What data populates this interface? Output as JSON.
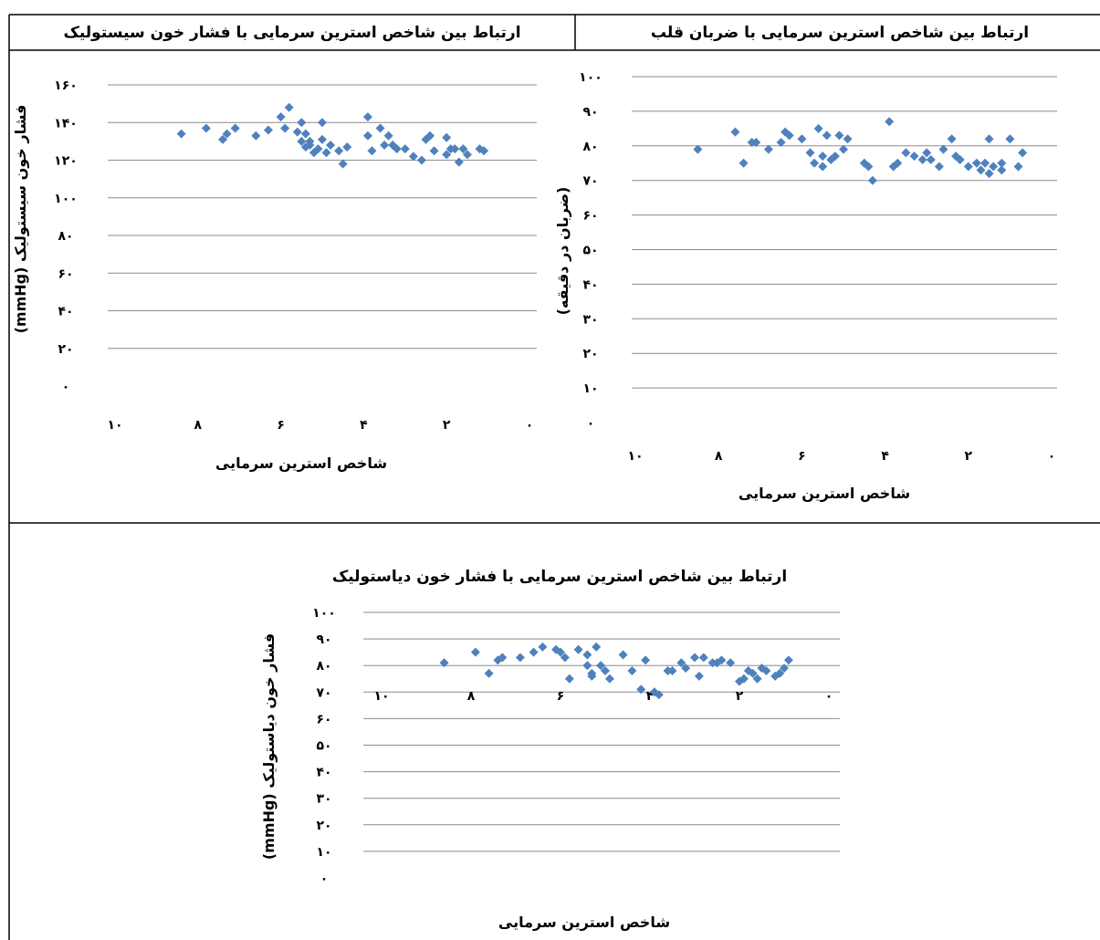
{
  "chart_data": [
    {
      "type": "scatter",
      "title": "ارتباط بین شاخص استرین سرمایی با فشار خون سیستولیک",
      "xlabel": "شاخص استرین سرمایی",
      "ylabel": "فشار خون سیستولیک (mmHg)",
      "xlim": [
        0,
        10
      ],
      "ylim": [
        0,
        160
      ],
      "x_reversed": true,
      "x_ticks": [
        "۱۰",
        "۸",
        "۶",
        "۴",
        "۲",
        "۰"
      ],
      "y_ticks": [
        "۰",
        "۲۰",
        "۴۰",
        "۶۰",
        "۸۰",
        "۱۰۰",
        "۱۲۰",
        "۱۴۰",
        "۱۶۰"
      ],
      "grid": true,
      "series": [
        {
          "x": [
            8.4,
            7.8,
            7.4,
            7.3,
            7.1,
            6.6,
            6.3,
            6.0,
            5.9,
            5.8,
            5.6,
            5.5,
            5.5,
            5.4,
            5.4,
            5.3,
            5.3,
            5.2,
            5.1,
            5.0,
            5.0,
            4.9,
            4.8,
            4.6,
            4.5,
            4.4,
            3.9,
            3.9,
            3.8,
            3.6,
            3.5,
            3.4,
            3.3,
            3.2,
            3.0,
            2.8,
            2.6,
            2.5,
            2.4,
            2.3,
            2.0,
            2.0,
            1.9,
            1.8,
            1.7,
            1.6,
            1.5,
            1.2,
            1.1
          ],
          "y": [
            134,
            137,
            131,
            134,
            137,
            133,
            136,
            143,
            137,
            148,
            135,
            130,
            140,
            127,
            134,
            130,
            128,
            124,
            126,
            140,
            131,
            124,
            128,
            125,
            118,
            127,
            143,
            133,
            125,
            137,
            128,
            133,
            128,
            126,
            126,
            122,
            120,
            131,
            133,
            125,
            132,
            123,
            126,
            126,
            119,
            126,
            123,
            126,
            125
          ]
        }
      ],
      "color": "#4f81bd"
    },
    {
      "type": "scatter",
      "title": "ارتباط بین شاخص استرین سرمایی با ضربان قلب",
      "xlabel": "شاخص استرین سرمایی",
      "ylabel": "(ضربان در دقیقه)",
      "xlim": [
        0,
        10
      ],
      "ylim": [
        0,
        100
      ],
      "x_reversed": true,
      "x_ticks": [
        "۱۰",
        "۸",
        "۶",
        "۴",
        "۲",
        "۰"
      ],
      "y_ticks": [
        "۰",
        "۱۰",
        "۲۰",
        "۳۰",
        "۴۰",
        "۵۰",
        "۶۰",
        "۷۰",
        "۸۰",
        "۹۰",
        "۱۰۰"
      ],
      "grid": true,
      "series": [
        {
          "x": [
            8.5,
            7.6,
            7.4,
            7.2,
            7.1,
            6.8,
            6.5,
            6.4,
            6.3,
            6.0,
            5.8,
            5.7,
            5.6,
            5.5,
            5.5,
            5.4,
            5.3,
            5.2,
            5.1,
            5.0,
            4.9,
            4.5,
            4.4,
            4.3,
            3.9,
            3.8,
            3.7,
            3.5,
            3.3,
            3.1,
            3.0,
            2.9,
            2.7,
            2.6,
            2.4,
            2.3,
            2.2,
            2.0,
            1.8,
            1.7,
            1.6,
            1.5,
            1.5,
            1.4,
            1.2,
            1.2,
            1.0,
            0.8,
            0.7
          ],
          "y": [
            79,
            84,
            75,
            81,
            81,
            79,
            81,
            84,
            83,
            82,
            78,
            75,
            85,
            77,
            74,
            83,
            76,
            77,
            83,
            79,
            82,
            75,
            74,
            70,
            87,
            74,
            75,
            78,
            77,
            76,
            78,
            76,
            74,
            79,
            82,
            77,
            76,
            74,
            75,
            73,
            75,
            72,
            82,
            74,
            73,
            75,
            82,
            74,
            78
          ]
        }
      ],
      "color": "#4f81bd"
    },
    {
      "type": "scatter",
      "title": "ارتباط بین شاخص استرین سرمایی با فشار خون دیاستولیک",
      "xlabel": "شاخص استرین سرمایی",
      "ylabel": "فشار خون دیاستولیک (mmHg)",
      "xlim": [
        0,
        10
      ],
      "ylim": [
        0,
        100
      ],
      "x_reversed": true,
      "x_ticks": [
        "۱۰",
        "۸",
        "۶",
        "۴",
        "۲",
        "۰"
      ],
      "y_ticks": [
        "۰",
        "۱۰",
        "۲۰",
        "۳۰",
        "۴۰",
        "۵۰",
        "۶۰",
        "۷۰",
        "۸۰",
        "۹۰",
        "۱۰۰"
      ],
      "grid": true,
      "series": [
        {
          "x": [
            8.6,
            7.9,
            7.6,
            7.4,
            7.3,
            6.9,
            6.6,
            6.4,
            6.1,
            6.0,
            5.9,
            5.8,
            5.6,
            5.4,
            5.4,
            5.3,
            5.3,
            5.2,
            5.1,
            5.0,
            4.9,
            4.6,
            4.4,
            4.2,
            4.1,
            3.9,
            3.8,
            3.6,
            3.5,
            3.3,
            3.2,
            3.0,
            2.9,
            2.8,
            2.6,
            2.5,
            2.4,
            2.2,
            2.0,
            1.9,
            1.8,
            1.7,
            1.6,
            1.5,
            1.4,
            1.2,
            1.1,
            1.0,
            0.9
          ],
          "y": [
            81,
            85,
            77,
            82,
            83,
            83,
            85,
            87,
            86,
            85,
            83,
            75,
            86,
            84,
            80,
            77,
            76,
            87,
            80,
            78,
            75,
            84,
            78,
            71,
            82,
            70,
            69,
            78,
            78,
            81,
            79,
            83,
            76,
            83,
            81,
            81,
            82,
            81,
            74,
            75,
            78,
            77,
            75,
            79,
            78,
            76,
            77,
            79,
            82
          ]
        }
      ],
      "color": "#4f81bd"
    }
  ]
}
